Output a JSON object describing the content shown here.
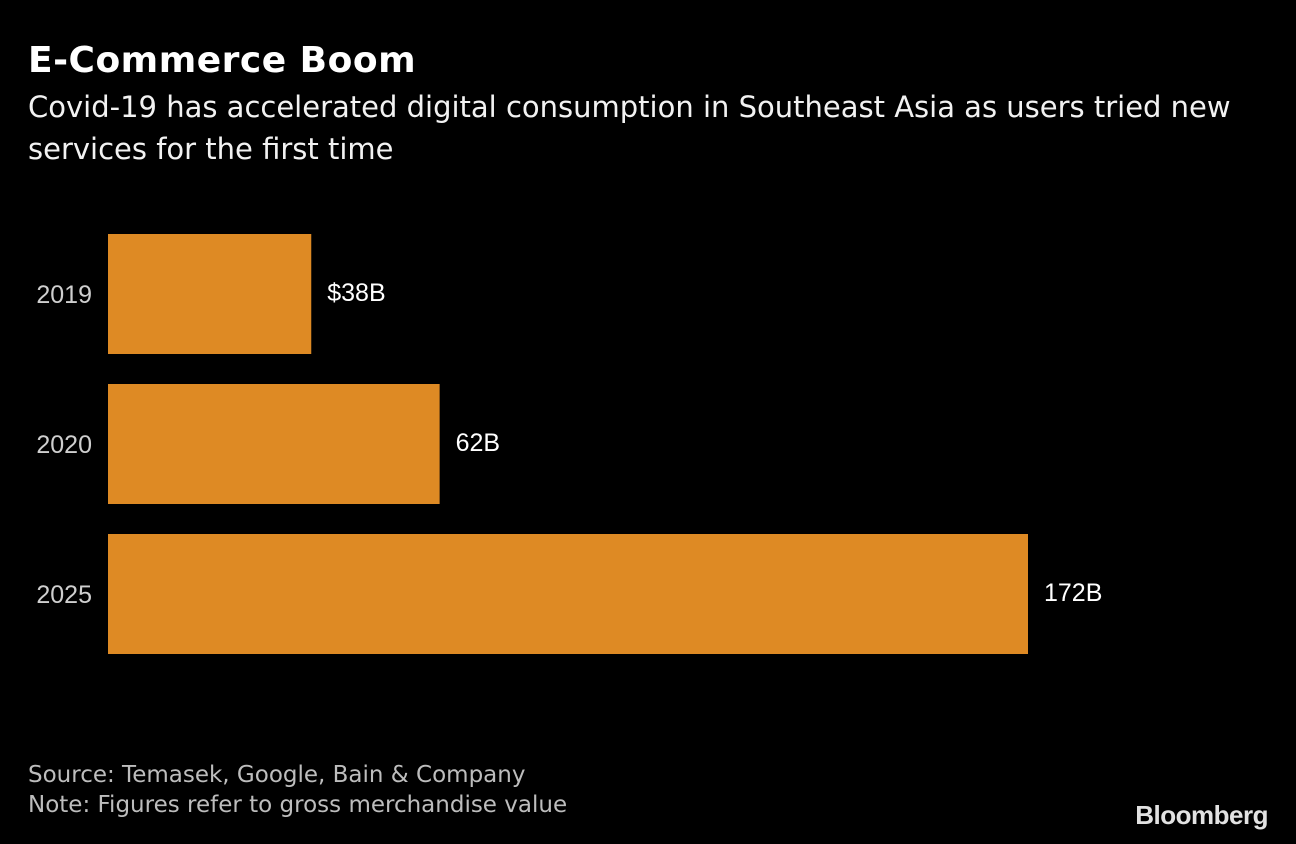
{
  "chart_data": {
    "type": "bar",
    "orientation": "horizontal",
    "title": "E-Commerce Boom",
    "subtitle": "Covid-19 has accelerated digital consumption in Southeast Asia as users tried new services for the first time",
    "categories": [
      "2019",
      "2020",
      "2025"
    ],
    "values": [
      38,
      62,
      172
    ],
    "data_labels": [
      "$38B",
      "62B",
      "172B"
    ],
    "unit": "USD billions",
    "xlim": [
      0,
      172
    ],
    "grid": false,
    "bar_color": "#DE8A24",
    "background": "#000000"
  },
  "footer": {
    "source": "Source: Temasek, Google, Bain & Company",
    "note": "Note: Figures refer to gross merchandise value",
    "logo": "Bloomberg"
  }
}
